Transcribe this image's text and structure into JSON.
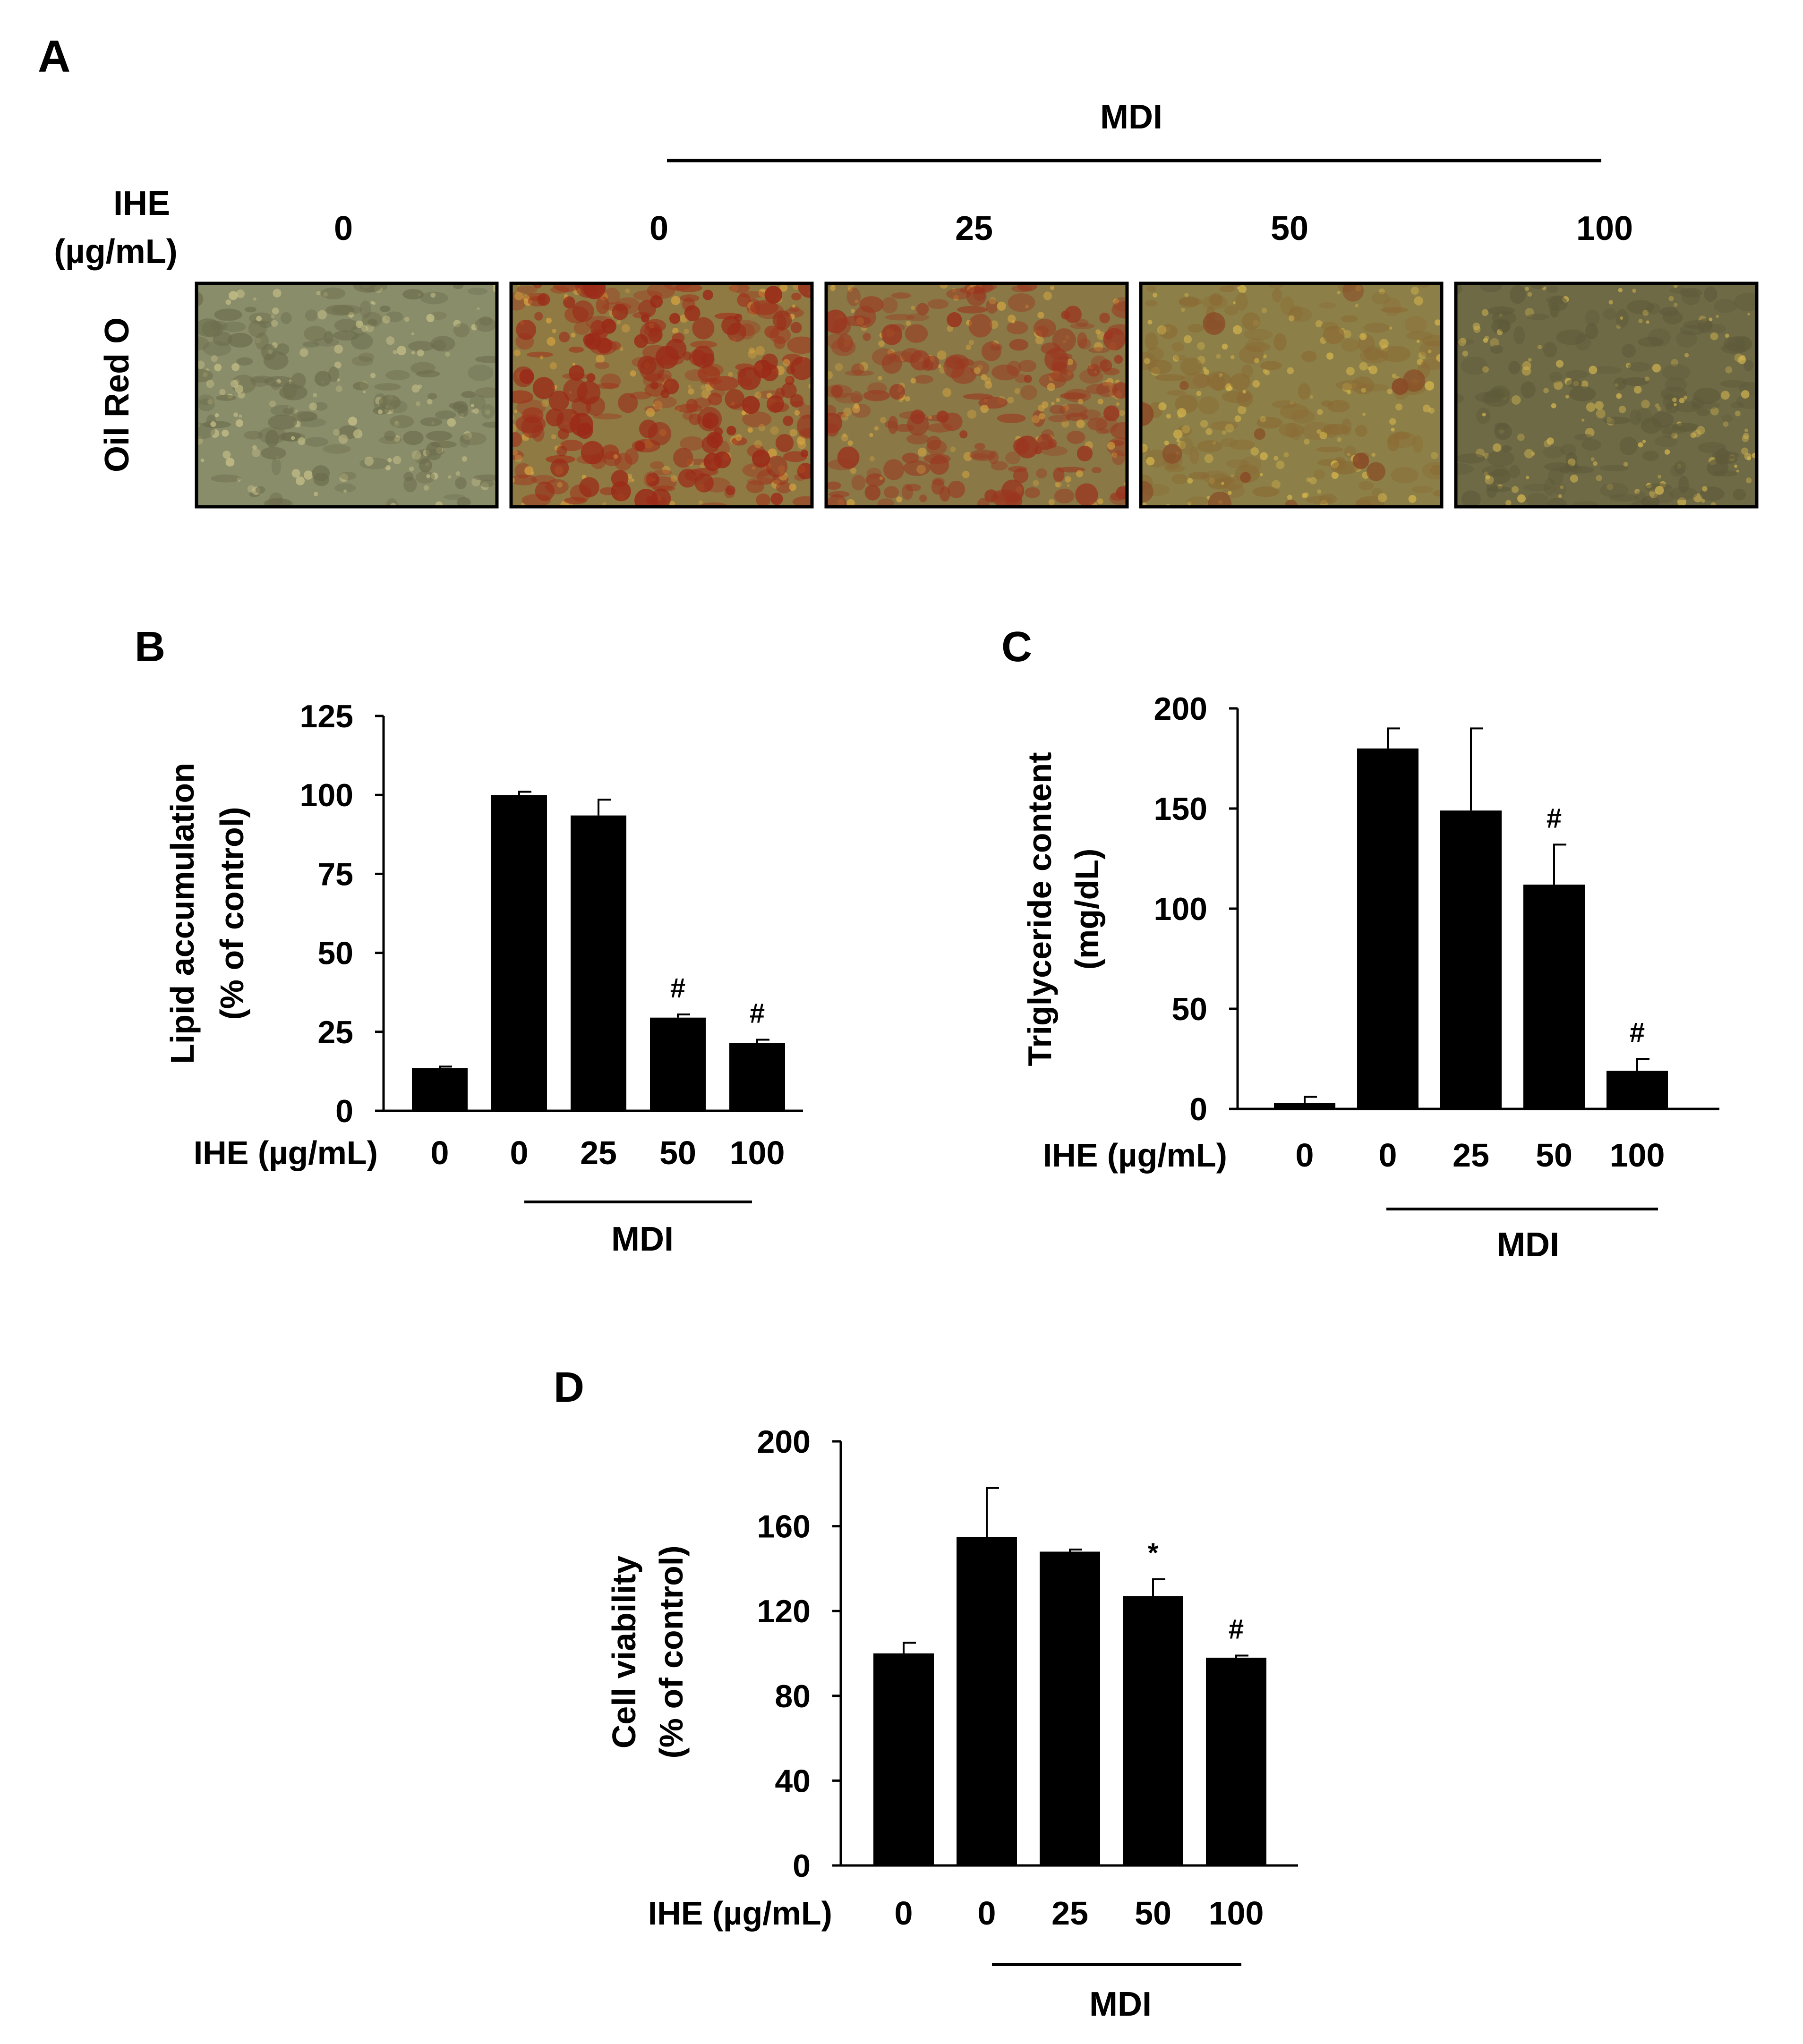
{
  "panel_a": {
    "label": "A",
    "group_label": "MDI",
    "ihe_label_line1": "IHE",
    "ihe_label_line2": "(µg/mL)",
    "row_label": "Oil Red O",
    "doses": [
      "0",
      "0",
      "25",
      "50",
      "100"
    ],
    "micrographs": [
      {
        "name": "control",
        "base": "#8a8d6a",
        "spots": "#6b6c4c",
        "highlight": "#c9c28a",
        "stain": null,
        "stain_density": 0
      },
      {
        "name": "mdi-0",
        "base": "#8f7a44",
        "spots": "#a0331c",
        "highlight": "#d6a340",
        "stain": "#9b2a18",
        "stain_density": 0.9
      },
      {
        "name": "mdi-25",
        "base": "#8a7846",
        "spots": "#9a3b22",
        "highlight": "#d2a442",
        "stain": "#9a3620",
        "stain_density": 0.45
      },
      {
        "name": "mdi-50",
        "base": "#8c8048",
        "spots": "#8b6a34",
        "highlight": "#d8b64c",
        "stain": "#8a4a26",
        "stain_density": 0.12
      },
      {
        "name": "mdi-100",
        "base": "#6f6a46",
        "spots": "#5e5a3a",
        "highlight": "#d4b650",
        "stain": null,
        "stain_density": 0
      }
    ]
  },
  "chart_data": [
    {
      "panel": "B",
      "type": "bar",
      "ylabel_line1": "Lipid accumulation",
      "ylabel_line2": "(% of control)",
      "xlabel": "IHE (µg/mL)",
      "group_label": "MDI",
      "categories": [
        "0",
        "0",
        "25",
        "50",
        "100"
      ],
      "values": [
        13.5,
        100,
        93.5,
        29.5,
        21.5
      ],
      "errors": [
        0.5,
        1,
        5,
        1,
        1
      ],
      "annotations": [
        "",
        "",
        "",
        "#",
        "#"
      ],
      "ylim": [
        0,
        125
      ],
      "yticks": [
        0,
        25,
        50,
        75,
        100,
        125
      ]
    },
    {
      "panel": "C",
      "type": "bar",
      "ylabel_line1": "Triglyceride content",
      "ylabel_line2": "(mg/dL)",
      "xlabel": "IHE (µg/mL)",
      "group_label": "MDI",
      "categories": [
        "0",
        "0",
        "25",
        "50",
        "100"
      ],
      "values": [
        3,
        180,
        149,
        112,
        19
      ],
      "errors": [
        3,
        10,
        41,
        20,
        6
      ],
      "annotations": [
        "",
        "",
        "",
        "#",
        "#"
      ],
      "ylim": [
        0,
        200
      ],
      "yticks": [
        0,
        50,
        100,
        150,
        200
      ]
    },
    {
      "panel": "D",
      "type": "bar",
      "ylabel_line1": "Cell viability",
      "ylabel_line2": "(% of control)",
      "xlabel": "IHE (µg/mL)",
      "group_label": "MDI",
      "categories": [
        "0",
        "0",
        "25",
        "50",
        "100"
      ],
      "values": [
        100,
        155,
        148,
        127,
        98
      ],
      "errors": [
        5,
        23,
        1,
        8,
        1
      ],
      "annotations": [
        "",
        "",
        "",
        "*",
        "#"
      ],
      "ylim": [
        0,
        200
      ],
      "yticks": [
        0,
        40,
        80,
        120,
        160,
        200
      ]
    }
  ]
}
